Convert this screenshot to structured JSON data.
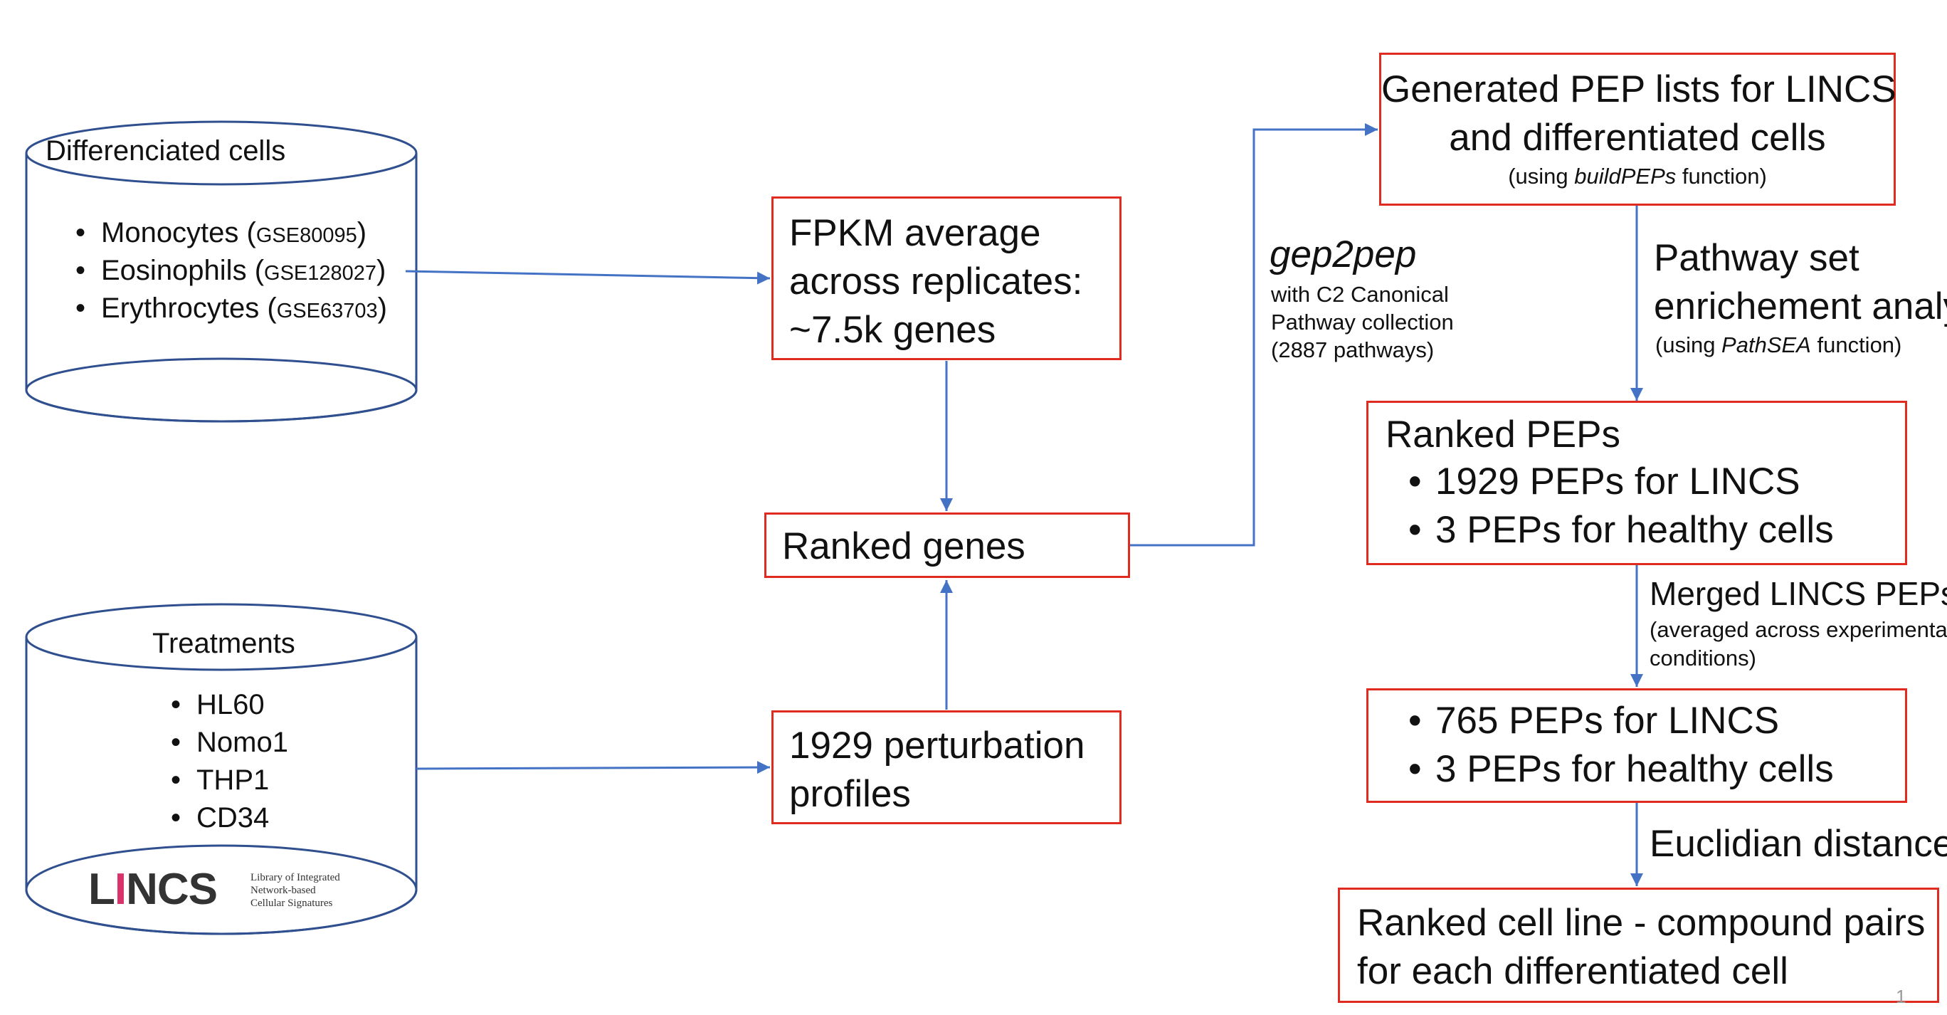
{
  "colors": {
    "box_border": "#e02b20",
    "cylinder_stroke": "#2f4f8f",
    "arrow": "#4472c4"
  },
  "diff_cells": {
    "title": "Differenciated cells",
    "items": [
      {
        "name": "Monocytes",
        "gse": "GSE80095"
      },
      {
        "name": "Eosinophils",
        "gse": "GSE128027"
      },
      {
        "name": "Erythrocytes",
        "gse": "GSE63703"
      }
    ]
  },
  "treatments": {
    "title": "Treatments",
    "items": [
      "HL60",
      "Nomo1",
      "THP1",
      "CD34"
    ],
    "logo_text": "LINCS",
    "logo_subtitle": [
      "Library of Integrated",
      "Network-based",
      "Cellular Signatures"
    ]
  },
  "fpkm": {
    "lines": [
      "FPKM average",
      "across replicates:",
      "~7.5k genes"
    ]
  },
  "ranked_genes": {
    "label": "Ranked genes"
  },
  "perturbation": {
    "lines": [
      "1929 perturbation",
      "profiles"
    ]
  },
  "gep2pep": {
    "title": "gep2pep",
    "lines": [
      "with C2 Canonical",
      "Pathway collection",
      "(2887 pathways)"
    ]
  },
  "generated": {
    "lines": [
      "Generated PEP lists for LINCS",
      "and differentiated cells"
    ],
    "note_prefix": "(using ",
    "note_fn": "buildPEPs",
    "note_suffix": " function)"
  },
  "pathway": {
    "lines": [
      "Pathway set",
      "enrichement analysis"
    ],
    "note_prefix": "(using ",
    "note_fn": "PathSEA",
    "note_suffix": " function)"
  },
  "ranked_peps": {
    "title": "Ranked PEPs",
    "items": [
      "1929 PEPs for LINCS",
      "3 PEPs for healthy cells"
    ]
  },
  "merged": {
    "title": "Merged LINCS PEPs",
    "note_lines": [
      "(averaged across experimental",
      "conditions)"
    ]
  },
  "merged_peps": {
    "items": [
      "765 PEPs for LINCS",
      "3 PEPs for healthy cells"
    ]
  },
  "euclid": {
    "label": "Euclidian distance"
  },
  "final": {
    "lines": [
      "Ranked cell line - compound pairs",
      "for each differentiated cell"
    ]
  },
  "page_number": "1"
}
